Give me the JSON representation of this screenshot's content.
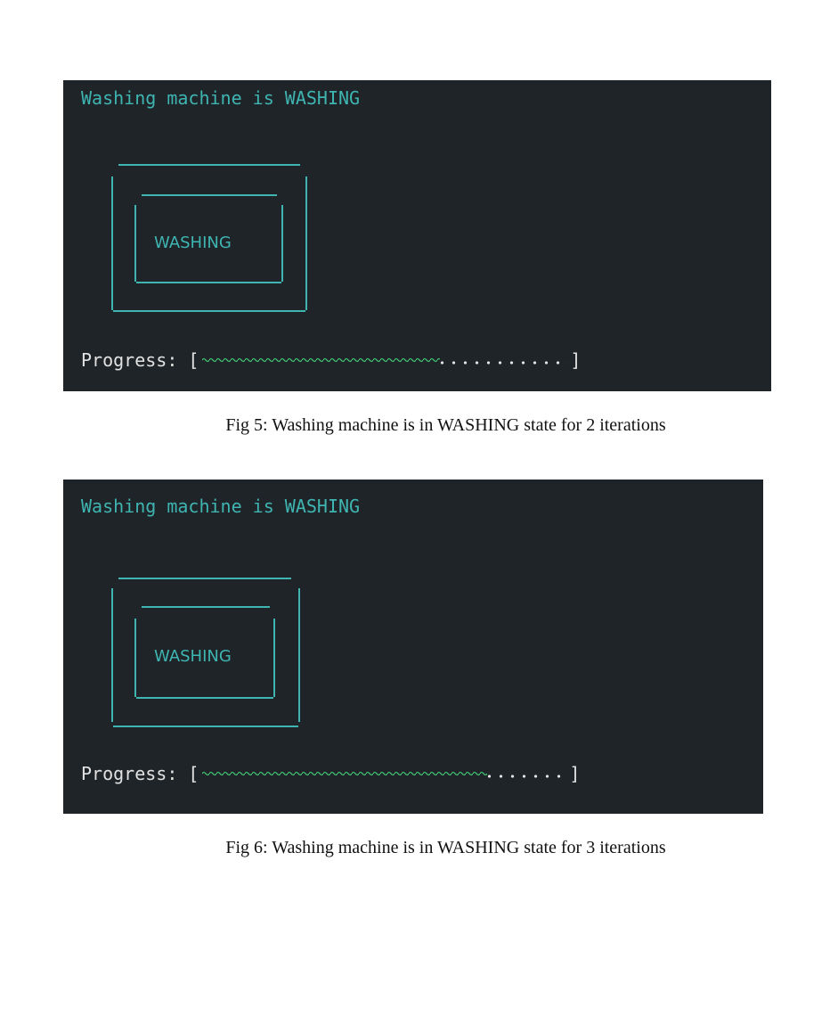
{
  "figures": [
    {
      "status_text": "Washing machine is WASHING",
      "drum_label": "WASHING",
      "progress_label": "Progress:",
      "progress_open": "[",
      "progress_close": "]",
      "progress_fraction": 0.65,
      "caption": "Fig 5: Washing machine is in WASHING state for 2 iterations"
    },
    {
      "status_text": "Washing machine is WASHING",
      "drum_label": "WASHING",
      "progress_label": "Progress:",
      "progress_open": "[",
      "progress_close": "]",
      "progress_fraction": 0.78,
      "caption": "Fig 6: Washing machine is in WASHING state for 3 iterations"
    }
  ],
  "colors": {
    "terminal_bg": "#1f2428",
    "accent_text": "#3fb5b2",
    "progress_fill": "#40c070",
    "plain_text": "#e2e2e2"
  }
}
